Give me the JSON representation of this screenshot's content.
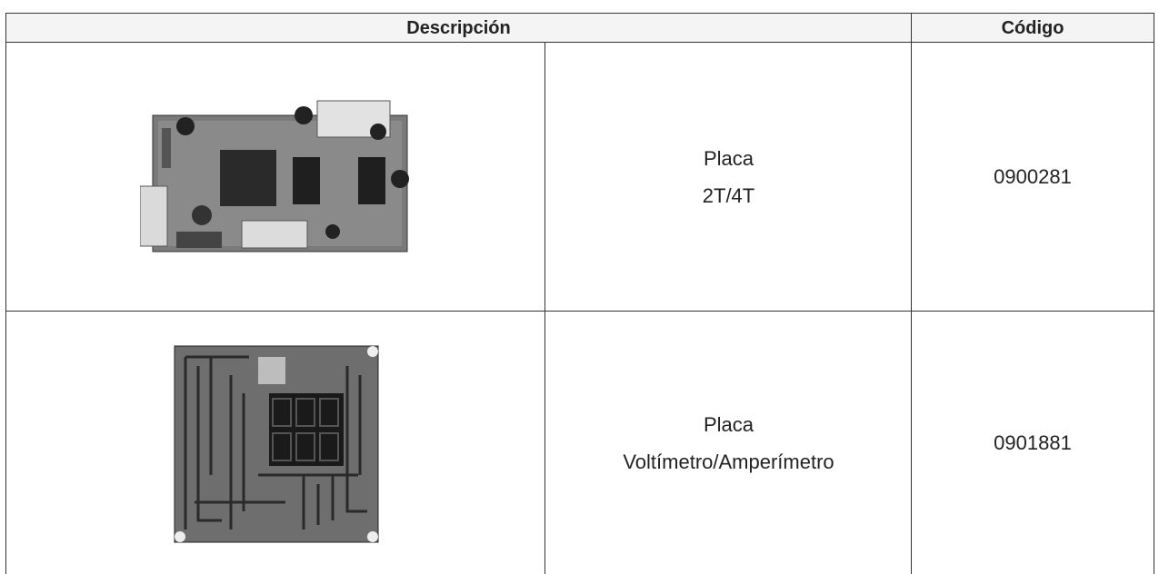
{
  "table": {
    "header": [
      "Descripción",
      "Código"
    ],
    "rows": [
      {
        "description": [
          "Placa",
          "2T/4T"
        ],
        "code": "0900281"
      },
      {
        "description": [
          "Placa",
          "Voltímetro/Amperímetro"
        ],
        "code": "0901881"
      }
    ]
  }
}
